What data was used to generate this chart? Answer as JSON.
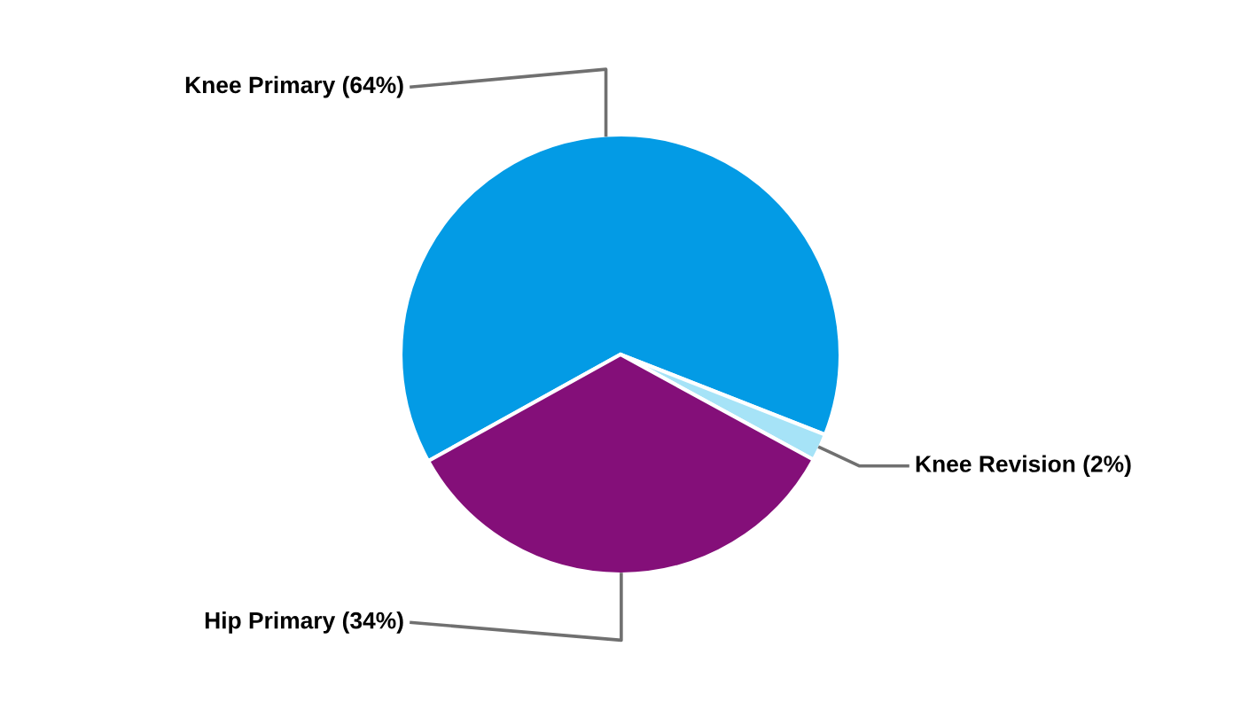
{
  "chart_data": {
    "type": "pie",
    "categories": [
      "Knee Primary (64%)",
      "Knee Revision (2%)",
      "Hip Primary (34%)"
    ],
    "values": [
      64,
      2,
      34
    ],
    "colors": [
      "#039be5",
      "#a6e3f7",
      "#840f79"
    ],
    "legend": false
  }
}
